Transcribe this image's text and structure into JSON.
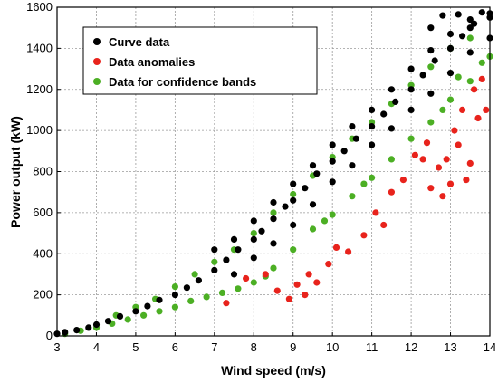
{
  "chart_data": {
    "type": "scatter",
    "xlabel": "Wind speed (m/s)",
    "ylabel": "Power output (kW)",
    "xlim": [
      3,
      14
    ],
    "ylim": [
      0,
      1600
    ],
    "x_ticks": [
      3,
      4,
      5,
      6,
      7,
      8,
      9,
      10,
      11,
      12,
      13,
      14
    ],
    "y_ticks": [
      0,
      200,
      400,
      600,
      800,
      1000,
      1200,
      1400,
      1600
    ],
    "grid": true,
    "legend_position": "top-left",
    "series": [
      {
        "name": "Curve data",
        "color": "#000000",
        "points": [
          [
            3.0,
            10
          ],
          [
            3.2,
            18
          ],
          [
            3.5,
            28
          ],
          [
            3.8,
            40
          ],
          [
            4.0,
            55
          ],
          [
            4.3,
            72
          ],
          [
            4.6,
            95
          ],
          [
            5.0,
            120
          ],
          [
            5.3,
            145
          ],
          [
            5.6,
            175
          ],
          [
            6.0,
            200
          ],
          [
            6.3,
            235
          ],
          [
            6.6,
            270
          ],
          [
            7.0,
            320
          ],
          [
            7.3,
            370
          ],
          [
            7.6,
            420
          ],
          [
            8.0,
            470
          ],
          [
            8.2,
            510
          ],
          [
            8.5,
            570
          ],
          [
            8.8,
            630
          ],
          [
            9.0,
            660
          ],
          [
            9.3,
            720
          ],
          [
            9.6,
            790
          ],
          [
            10.0,
            850
          ],
          [
            10.3,
            900
          ],
          [
            10.6,
            960
          ],
          [
            11.0,
            1020
          ],
          [
            11.3,
            1080
          ],
          [
            11.6,
            1140
          ],
          [
            12.0,
            1200
          ],
          [
            12.3,
            1270
          ],
          [
            12.6,
            1340
          ],
          [
            13.0,
            1400
          ],
          [
            13.3,
            1460
          ],
          [
            13.6,
            1520
          ],
          [
            14.0,
            1550
          ],
          [
            7.5,
            300
          ],
          [
            8.0,
            380
          ],
          [
            8.5,
            450
          ],
          [
            9.0,
            540
          ],
          [
            9.5,
            640
          ],
          [
            10.0,
            750
          ],
          [
            10.5,
            830
          ],
          [
            11.0,
            930
          ],
          [
            11.5,
            1010
          ],
          [
            12.0,
            1100
          ],
          [
            12.5,
            1180
          ],
          [
            13.0,
            1280
          ],
          [
            13.5,
            1380
          ],
          [
            14.0,
            1450
          ],
          [
            7.0,
            420
          ],
          [
            7.5,
            470
          ],
          [
            8.0,
            560
          ],
          [
            8.5,
            650
          ],
          [
            9.0,
            740
          ],
          [
            9.5,
            830
          ],
          [
            10.0,
            930
          ],
          [
            10.5,
            1020
          ],
          [
            11.0,
            1100
          ],
          [
            11.5,
            1200
          ],
          [
            12.0,
            1300
          ],
          [
            12.5,
            1390
          ],
          [
            13.0,
            1470
          ],
          [
            13.5,
            1540
          ],
          [
            14.0,
            1570
          ],
          [
            12.8,
            1560
          ],
          [
            13.2,
            1565
          ],
          [
            13.8,
            1575
          ],
          [
            13.5,
            1500
          ],
          [
            12.5,
            1500
          ]
        ]
      },
      {
        "name": "Data anomalies",
        "color": "#e8231c",
        "points": [
          [
            8.6,
            220
          ],
          [
            8.9,
            180
          ],
          [
            9.1,
            250
          ],
          [
            9.4,
            300
          ],
          [
            9.6,
            260
          ],
          [
            9.9,
            350
          ],
          [
            10.4,
            410
          ],
          [
            10.8,
            490
          ],
          [
            11.1,
            600
          ],
          [
            11.5,
            700
          ],
          [
            11.8,
            760
          ],
          [
            12.1,
            880
          ],
          [
            12.4,
            940
          ],
          [
            12.7,
            820
          ],
          [
            12.9,
            860
          ],
          [
            13.1,
            1000
          ],
          [
            13.3,
            1100
          ],
          [
            13.6,
            1200
          ],
          [
            13.8,
            1250
          ],
          [
            12.5,
            720
          ],
          [
            12.8,
            680
          ],
          [
            13.0,
            740
          ],
          [
            13.4,
            760
          ],
          [
            13.7,
            1060
          ],
          [
            12.3,
            860
          ],
          [
            13.2,
            930
          ],
          [
            10.1,
            430
          ],
          [
            9.3,
            200
          ],
          [
            7.3,
            160
          ],
          [
            7.8,
            280
          ],
          [
            8.3,
            300
          ],
          [
            13.9,
            1100
          ],
          [
            13.5,
            840
          ],
          [
            11.3,
            540
          ]
        ]
      },
      {
        "name": "Data for confidence bands",
        "color": "#4caf24",
        "points": [
          [
            3.2,
            10
          ],
          [
            3.6,
            25
          ],
          [
            4.0,
            40
          ],
          [
            4.4,
            60
          ],
          [
            4.8,
            80
          ],
          [
            5.2,
            100
          ],
          [
            5.6,
            120
          ],
          [
            6.0,
            140
          ],
          [
            6.4,
            170
          ],
          [
            6.8,
            190
          ],
          [
            7.2,
            210
          ],
          [
            7.6,
            230
          ],
          [
            8.0,
            260
          ],
          [
            8.3,
            290
          ],
          [
            4.5,
            100
          ],
          [
            5.0,
            140
          ],
          [
            5.5,
            180
          ],
          [
            6.0,
            240
          ],
          [
            6.5,
            300
          ],
          [
            7.0,
            360
          ],
          [
            7.5,
            420
          ],
          [
            8.0,
            500
          ],
          [
            8.5,
            600
          ],
          [
            9.0,
            690
          ],
          [
            9.5,
            780
          ],
          [
            10.0,
            870
          ],
          [
            10.5,
            960
          ],
          [
            11.0,
            1040
          ],
          [
            11.5,
            1130
          ],
          [
            12.0,
            1220
          ],
          [
            12.5,
            1310
          ],
          [
            13.0,
            1400
          ],
          [
            13.5,
            1450
          ],
          [
            8.5,
            330
          ],
          [
            9.0,
            420
          ],
          [
            9.5,
            520
          ],
          [
            10.0,
            590
          ],
          [
            10.5,
            680
          ],
          [
            11.0,
            770
          ],
          [
            11.5,
            860
          ],
          [
            12.0,
            960
          ],
          [
            12.5,
            1040
          ],
          [
            13.0,
            1150
          ],
          [
            13.5,
            1240
          ],
          [
            14.0,
            1360
          ],
          [
            13.8,
            1330
          ],
          [
            13.2,
            1260
          ],
          [
            12.8,
            1100
          ],
          [
            10.8,
            740
          ],
          [
            9.8,
            560
          ]
        ]
      }
    ]
  }
}
